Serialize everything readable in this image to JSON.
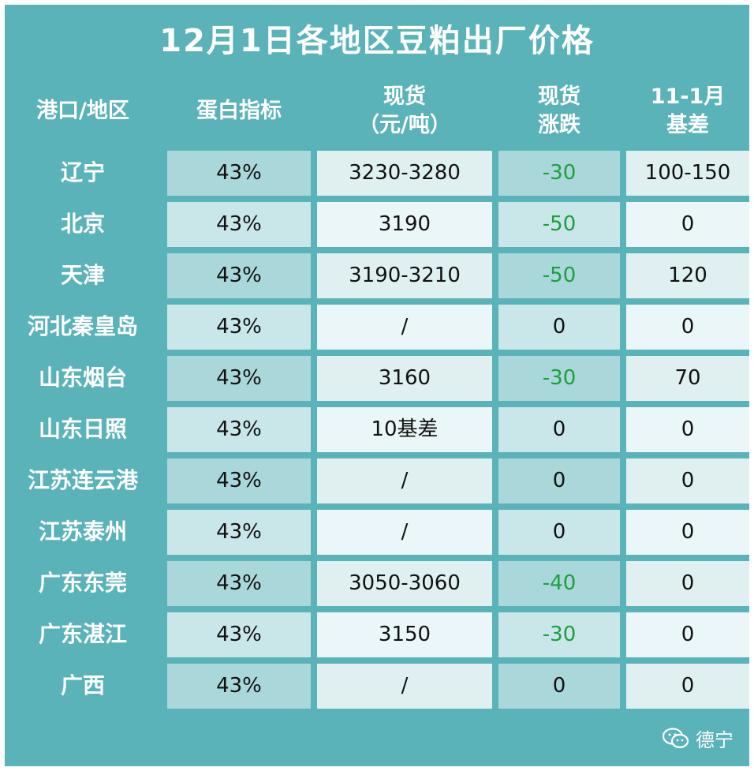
{
  "title": "12月1日各地区豆粕出厂价格",
  "headers": [
    "港口/地区",
    "蛋白指标",
    "现货\n（元/吨）",
    "现货\n涨跌",
    "11-1月\n基差"
  ],
  "rows": [
    {
      "region": "辽宁",
      "protein": "43%",
      "spot": "3230-3280",
      "change": "-30",
      "basis": "100-150"
    },
    {
      "region": "北京",
      "protein": "43%",
      "spot": "3190",
      "change": "-50",
      "basis": "0"
    },
    {
      "region": "天津",
      "protein": "43%",
      "spot": "3190-3210",
      "change": "-50",
      "basis": "120"
    },
    {
      "region": "河北秦皇岛",
      "protein": "43%",
      "spot": "/",
      "change": "0",
      "basis": "0"
    },
    {
      "region": "山东烟台",
      "protein": "43%",
      "spot": "3160",
      "change": "-30",
      "basis": "70"
    },
    {
      "region": "山东日照",
      "protein": "43%",
      "spot": "10基差",
      "change": "0",
      "basis": "0"
    },
    {
      "region": "江苏连云港",
      "protein": "43%",
      "spot": "/",
      "change": "0",
      "basis": "0"
    },
    {
      "region": "江苏泰州",
      "protein": "43%",
      "spot": "/",
      "change": "0",
      "basis": "0"
    },
    {
      "region": "广东东莞",
      "protein": "43%",
      "spot": "3050-3060",
      "change": "-40",
      "basis": "0"
    },
    {
      "region": "广东湛江",
      "protein": "43%",
      "spot": "3150",
      "change": "-30",
      "basis": "0"
    },
    {
      "region": "广西",
      "protein": "43%",
      "spot": "/",
      "change": "0",
      "basis": "0"
    }
  ],
  "watermark": {
    "icon": "wechat-icon",
    "text": "德宁"
  },
  "colors": {
    "header_bg": "#5ab3b9",
    "negative_change": "#1e9e3f"
  }
}
